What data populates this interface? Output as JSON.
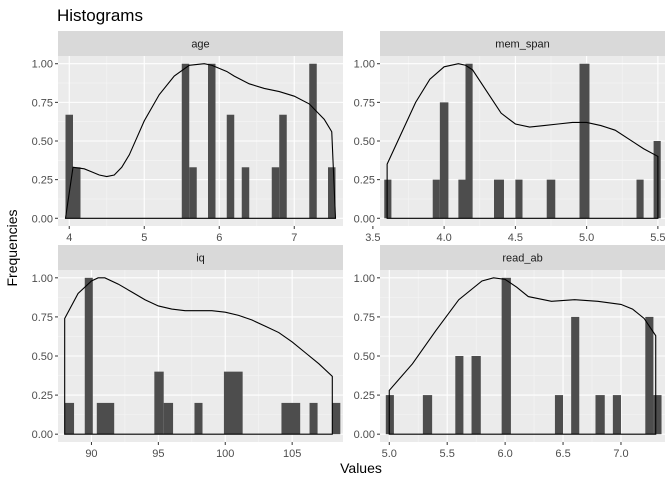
{
  "chart_data": {
    "type": "bar",
    "title": "Histograms",
    "xlabel": "Values",
    "ylabel": "Frequencies",
    "panels": [
      {
        "name": "age",
        "xlim": [
          3.85,
          7.65
        ],
        "ylim": [
          -0.05,
          1.05
        ],
        "x_ticks": [
          4,
          5,
          6,
          7
        ],
        "y_ticks": [
          0,
          0.25,
          0.5,
          0.75,
          1
        ],
        "y_tick_labels": [
          "0.00",
          "0.25",
          "0.50",
          "0.75",
          "1.00"
        ],
        "bins": [
          {
            "x0": 3.95,
            "x1": 4.05,
            "y": 0.67
          },
          {
            "x0": 4.05,
            "x1": 4.15,
            "y": 0.33
          },
          {
            "x0": 5.5,
            "x1": 5.6,
            "y": 1.0
          },
          {
            "x0": 5.6,
            "x1": 5.7,
            "y": 0.33
          },
          {
            "x0": 5.85,
            "x1": 5.95,
            "y": 1.0
          },
          {
            "x0": 6.1,
            "x1": 6.2,
            "y": 0.67
          },
          {
            "x0": 6.3,
            "x1": 6.4,
            "y": 0.33
          },
          {
            "x0": 6.7,
            "x1": 6.8,
            "y": 0.33
          },
          {
            "x0": 6.8,
            "x1": 6.9,
            "y": 0.67
          },
          {
            "x0": 7.2,
            "x1": 7.3,
            "y": 1.0
          },
          {
            "x0": 7.45,
            "x1": 7.55,
            "y": 0.33
          }
        ],
        "density": {
          "x": [
            3.95,
            4.05,
            4.2,
            4.3,
            4.4,
            4.5,
            4.6,
            4.7,
            4.8,
            4.9,
            5.0,
            5.2,
            5.4,
            5.6,
            5.8,
            5.9,
            6.0,
            6.1,
            6.2,
            6.4,
            6.6,
            6.8,
            7.0,
            7.2,
            7.4,
            7.5,
            7.55
          ],
          "y": [
            0.0,
            0.33,
            0.32,
            0.3,
            0.28,
            0.27,
            0.28,
            0.33,
            0.41,
            0.52,
            0.63,
            0.8,
            0.92,
            0.99,
            1.0,
            0.99,
            0.97,
            0.95,
            0.92,
            0.87,
            0.84,
            0.82,
            0.79,
            0.74,
            0.64,
            0.56,
            0.0
          ]
        }
      },
      {
        "name": "mem_span",
        "xlim": [
          3.55,
          5.55
        ],
        "ylim": [
          -0.05,
          1.05
        ],
        "x_ticks": [
          3.5,
          4,
          4.5,
          5,
          5.5
        ],
        "x_tick_labels": [
          "3.5",
          "4.0",
          "4.5",
          "5.0",
          "5.5"
        ],
        "y_ticks": [
          0,
          0.25,
          0.5,
          0.75,
          1
        ],
        "y_tick_labels": [
          "0.00",
          "0.25",
          "0.50",
          "0.75",
          "1.00"
        ],
        "bins": [
          {
            "x0": 3.58,
            "x1": 3.63,
            "y": 0.25
          },
          {
            "x0": 3.92,
            "x1": 3.97,
            "y": 0.25
          },
          {
            "x0": 3.97,
            "x1": 4.03,
            "y": 0.75
          },
          {
            "x0": 4.1,
            "x1": 4.15,
            "y": 0.25
          },
          {
            "x0": 4.15,
            "x1": 4.2,
            "y": 1.0
          },
          {
            "x0": 4.35,
            "x1": 4.42,
            "y": 0.25
          },
          {
            "x0": 4.5,
            "x1": 4.55,
            "y": 0.25
          },
          {
            "x0": 4.72,
            "x1": 4.78,
            "y": 0.25
          },
          {
            "x0": 4.95,
            "x1": 5.02,
            "y": 1.0
          },
          {
            "x0": 5.35,
            "x1": 5.4,
            "y": 0.25
          },
          {
            "x0": 5.47,
            "x1": 5.52,
            "y": 0.5
          }
        ],
        "density": {
          "x": [
            3.6,
            3.6,
            3.7,
            3.8,
            3.9,
            4.0,
            4.1,
            4.15,
            4.2,
            4.3,
            4.4,
            4.5,
            4.6,
            4.7,
            4.8,
            4.9,
            5.0,
            5.1,
            5.2,
            5.3,
            5.4,
            5.5,
            5.5
          ],
          "y": [
            0.0,
            0.35,
            0.55,
            0.75,
            0.9,
            0.98,
            1.0,
            0.99,
            0.96,
            0.82,
            0.68,
            0.61,
            0.59,
            0.6,
            0.61,
            0.62,
            0.62,
            0.6,
            0.57,
            0.51,
            0.45,
            0.4,
            0.0
          ]
        }
      },
      {
        "name": "iq",
        "xlim": [
          87.5,
          108.8
        ],
        "ylim": [
          -0.05,
          1.05
        ],
        "x_ticks": [
          90,
          95,
          100,
          105
        ],
        "y_ticks": [
          0,
          0.25,
          0.5,
          0.75,
          1
        ],
        "y_tick_labels": [
          "0.00",
          "0.25",
          "0.50",
          "0.75",
          "1.00"
        ],
        "bins": [
          {
            "x0": 88.0,
            "x1": 88.7,
            "y": 0.2
          },
          {
            "x0": 89.5,
            "x1": 90.1,
            "y": 1.0
          },
          {
            "x0": 90.4,
            "x1": 91.7,
            "y": 0.2
          },
          {
            "x0": 94.7,
            "x1": 95.4,
            "y": 0.4
          },
          {
            "x0": 95.4,
            "x1": 96.1,
            "y": 0.2
          },
          {
            "x0": 97.7,
            "x1": 98.3,
            "y": 0.2
          },
          {
            "x0": 99.9,
            "x1": 101.3,
            "y": 0.4
          },
          {
            "x0": 104.2,
            "x1": 105.6,
            "y": 0.2
          },
          {
            "x0": 106.3,
            "x1": 106.9,
            "y": 0.2
          },
          {
            "x0": 108.0,
            "x1": 108.6,
            "y": 0.2
          }
        ],
        "density": {
          "x": [
            88.0,
            88.0,
            89.0,
            90.0,
            90.5,
            91.0,
            92.0,
            93.0,
            94.0,
            95.0,
            96.0,
            97.0,
            98.0,
            99.0,
            100.0,
            101.0,
            102.0,
            103.0,
            104.0,
            105.0,
            106.0,
            107.0,
            108.0,
            108.0
          ],
          "y": [
            0.0,
            0.74,
            0.9,
            0.98,
            1.0,
            1.0,
            0.96,
            0.91,
            0.86,
            0.82,
            0.8,
            0.79,
            0.79,
            0.79,
            0.78,
            0.76,
            0.73,
            0.69,
            0.65,
            0.59,
            0.52,
            0.45,
            0.37,
            0.0
          ]
        }
      },
      {
        "name": "read_ab",
        "xlim": [
          4.92,
          7.38
        ],
        "ylim": [
          -0.05,
          1.05
        ],
        "x_ticks": [
          5,
          5.5,
          6,
          6.5,
          7
        ],
        "x_tick_labels": [
          "5.0",
          "5.5",
          "6.0",
          "6.5",
          "7.0"
        ],
        "y_ticks": [
          0,
          0.25,
          0.5,
          0.75,
          1
        ],
        "y_tick_labels": [
          "0.00",
          "0.25",
          "0.50",
          "0.75",
          "1.00"
        ],
        "bins": [
          {
            "x0": 4.97,
            "x1": 5.04,
            "y": 0.25
          },
          {
            "x0": 5.29,
            "x1": 5.37,
            "y": 0.25
          },
          {
            "x0": 5.57,
            "x1": 5.64,
            "y": 0.5
          },
          {
            "x0": 5.71,
            "x1": 5.79,
            "y": 0.5
          },
          {
            "x0": 5.97,
            "x1": 6.05,
            "y": 1.0
          },
          {
            "x0": 6.43,
            "x1": 6.5,
            "y": 0.25
          },
          {
            "x0": 6.57,
            "x1": 6.64,
            "y": 0.75
          },
          {
            "x0": 6.78,
            "x1": 6.86,
            "y": 0.25
          },
          {
            "x0": 6.93,
            "x1": 7.0,
            "y": 0.25
          },
          {
            "x0": 7.21,
            "x1": 7.28,
            "y": 0.75
          },
          {
            "x0": 7.28,
            "x1": 7.35,
            "y": 0.25
          }
        ],
        "density": {
          "x": [
            5.0,
            5.0,
            5.2,
            5.4,
            5.6,
            5.8,
            5.9,
            6.0,
            6.1,
            6.2,
            6.4,
            6.6,
            6.8,
            7.0,
            7.1,
            7.2,
            7.3,
            7.3
          ],
          "y": [
            0.0,
            0.28,
            0.45,
            0.66,
            0.86,
            0.98,
            1.0,
            0.99,
            0.94,
            0.88,
            0.85,
            0.86,
            0.85,
            0.83,
            0.8,
            0.74,
            0.63,
            0.0
          ]
        }
      }
    ]
  }
}
